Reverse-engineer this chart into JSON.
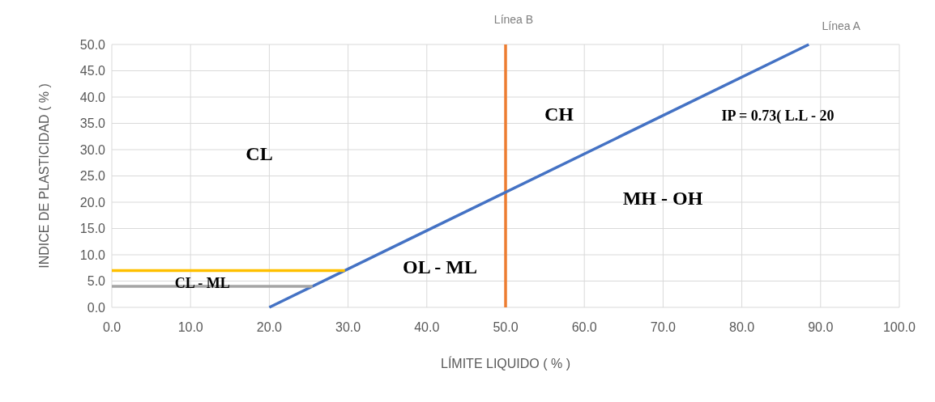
{
  "chart_data": {
    "type": "line",
    "xlabel": "LÍMITE LIQUIDO ( % )",
    "ylabel": "INDICE DE PLASTICIDAD ( % )",
    "xlim": [
      0,
      100
    ],
    "ylim": [
      0,
      50
    ],
    "xticks": [
      {
        "value": 0,
        "label": "0.0"
      },
      {
        "value": 10,
        "label": "10.0"
      },
      {
        "value": 20,
        "label": "20.0"
      },
      {
        "value": 30,
        "label": "30.0"
      },
      {
        "value": 40,
        "label": "40.0"
      },
      {
        "value": 50,
        "label": "50.0"
      },
      {
        "value": 60,
        "label": "60.0"
      },
      {
        "value": 70,
        "label": "70.0"
      },
      {
        "value": 80,
        "label": "80.0"
      },
      {
        "value": 90,
        "label": "90.0"
      },
      {
        "value": 100,
        "label": "100.0"
      }
    ],
    "yticks": [
      {
        "value": 0,
        "label": "0.0"
      },
      {
        "value": 5,
        "label": "5.0"
      },
      {
        "value": 10,
        "label": "10.0"
      },
      {
        "value": 15,
        "label": "15.0"
      },
      {
        "value": 20,
        "label": "20.0"
      },
      {
        "value": 25,
        "label": "25.0"
      },
      {
        "value": 30,
        "label": "30.0"
      },
      {
        "value": 35,
        "label": "35.0"
      },
      {
        "value": 40,
        "label": "40.0"
      },
      {
        "value": 45,
        "label": "45.0"
      },
      {
        "value": 50,
        "label": "50.0"
      }
    ],
    "grid": true,
    "marker": "none",
    "line_style": "solid",
    "series": [
      {
        "name": "Línea A",
        "color": "#4472c4",
        "x": [
          20,
          88.5
        ],
        "values": [
          0,
          50
        ]
      },
      {
        "color": "#ffc000",
        "x": [
          0,
          29.6
        ],
        "values": [
          7,
          7
        ]
      },
      {
        "color": "#a5a5a5",
        "x": [
          0,
          25.5
        ],
        "values": [
          4,
          4
        ]
      }
    ],
    "ref_lines": [
      {
        "axis": "x",
        "value": 50,
        "label": "Línea B",
        "color": "#ed7d31"
      }
    ],
    "annotations": [
      "CL",
      "CH",
      "IP = 0.73( L.L - 20",
      "MH - OH",
      "OL - ML",
      {
        "text": "CL - ML",
        "x": 11.5,
        "y": 4.6
      }
    ]
  }
}
